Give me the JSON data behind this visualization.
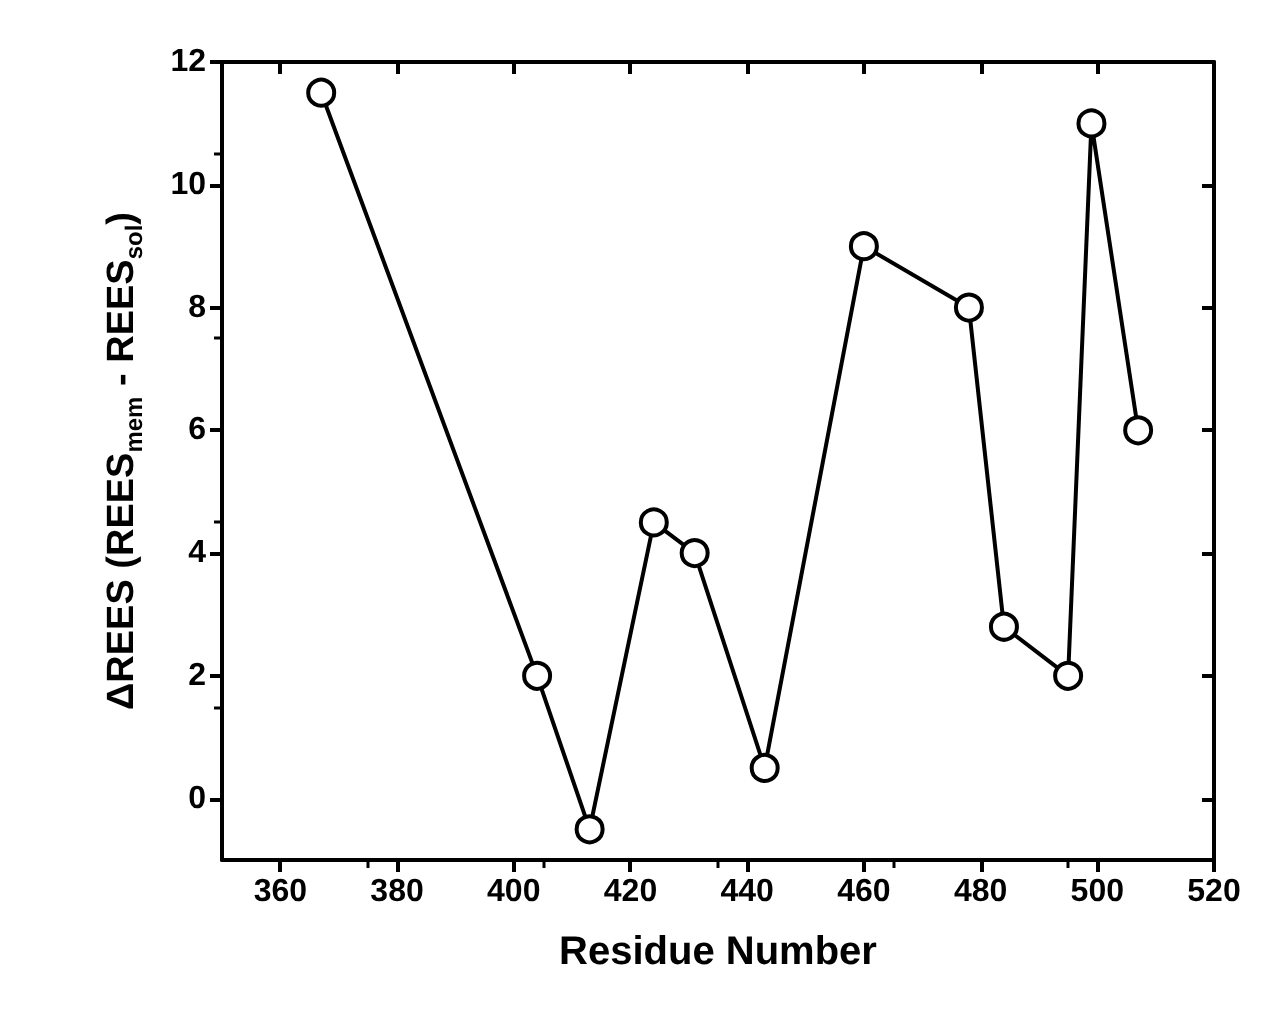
{
  "chart_data": {
    "type": "line",
    "xlabel": "Residue Number",
    "ylabel": "ΔREES (REES$_{mem}$ - REES$_{sol}$)",
    "x": [
      367,
      404,
      413,
      424,
      431,
      443,
      460,
      478,
      484,
      495,
      499,
      507
    ],
    "series": [
      {
        "color": "#000000",
        "values": [
          11.5,
          2,
          -0.5,
          4.5,
          4,
          0.5,
          9,
          8,
          2.8,
          2,
          11,
          6
        ]
      }
    ],
    "xlim": [
      350,
      520
    ],
    "xticks": [
      360,
      380,
      400,
      420,
      440,
      460,
      480,
      500,
      520
    ],
    "ylim": [
      -1,
      12
    ],
    "yticks": [
      0,
      2,
      4,
      6,
      8,
      10,
      12
    ],
    "grid": false,
    "marker": "circle",
    "line_style": "solid"
  }
}
